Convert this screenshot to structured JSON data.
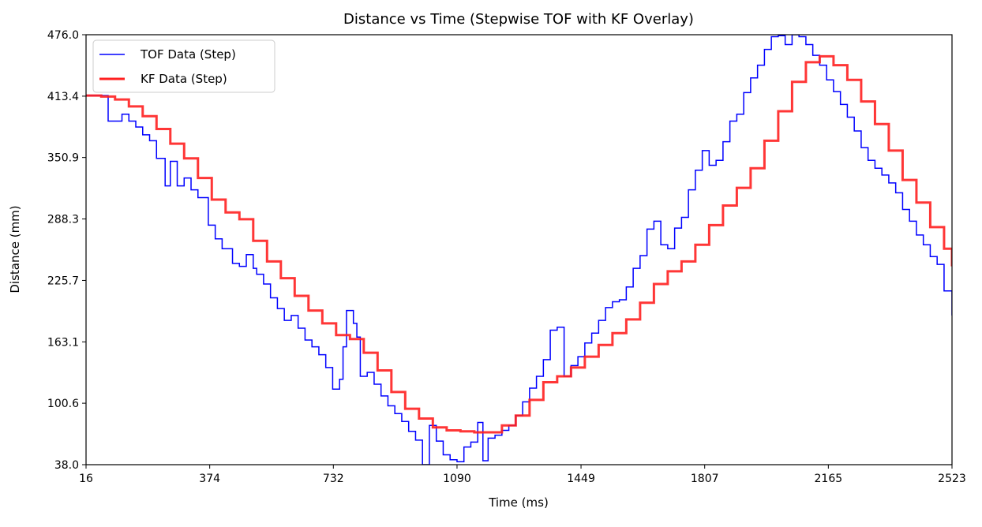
{
  "chart_data": {
    "type": "line",
    "step": true,
    "title": "Distance vs Time (Stepwise TOF with KF Overlay)",
    "xlabel": "Time (ms)",
    "ylabel": "Distance (mm)",
    "xlim": [
      16,
      2523
    ],
    "ylim": [
      38.0,
      476.0
    ],
    "xticks": [
      16,
      374,
      732,
      1090,
      1449,
      1807,
      2165,
      2523
    ],
    "xtick_labels": [
      "16",
      "374",
      "732",
      "1090",
      "1449",
      "1807",
      "2165",
      "2523"
    ],
    "yticks": [
      38.0,
      100.6,
      163.1,
      225.7,
      288.3,
      350.9,
      413.4,
      476.0
    ],
    "ytick_labels": [
      "38.0",
      "100.6",
      "163.1",
      "225.7",
      "288.3",
      "350.9",
      "413.4",
      "476.0"
    ],
    "legend": {
      "placement": "top-left"
    },
    "series": [
      {
        "name": "TOF Data (Step)",
        "color": "#0000ff",
        "points": [
          [
            16,
            414
          ],
          [
            50,
            414
          ],
          [
            80,
            388
          ],
          [
            120,
            395
          ],
          [
            140,
            388
          ],
          [
            160,
            382
          ],
          [
            180,
            374
          ],
          [
            200,
            368
          ],
          [
            220,
            350
          ],
          [
            245,
            322
          ],
          [
            260,
            347
          ],
          [
            280,
            322
          ],
          [
            300,
            330
          ],
          [
            320,
            318
          ],
          [
            340,
            310
          ],
          [
            370,
            282
          ],
          [
            390,
            268
          ],
          [
            410,
            258
          ],
          [
            440,
            243
          ],
          [
            460,
            240
          ],
          [
            480,
            252
          ],
          [
            500,
            238
          ],
          [
            510,
            232
          ],
          [
            530,
            222
          ],
          [
            550,
            208
          ],
          [
            570,
            197
          ],
          [
            590,
            185
          ],
          [
            610,
            190
          ],
          [
            630,
            177
          ],
          [
            650,
            165
          ],
          [
            670,
            158
          ],
          [
            690,
            150
          ],
          [
            710,
            137
          ],
          [
            730,
            115
          ],
          [
            750,
            125
          ],
          [
            760,
            158
          ],
          [
            770,
            195
          ],
          [
            790,
            182
          ],
          [
            800,
            168
          ],
          [
            810,
            128
          ],
          [
            830,
            132
          ],
          [
            850,
            120
          ],
          [
            870,
            108
          ],
          [
            890,
            98
          ],
          [
            910,
            90
          ],
          [
            930,
            82
          ],
          [
            950,
            72
          ],
          [
            970,
            63
          ],
          [
            990,
            38
          ],
          [
            1010,
            78
          ],
          [
            1030,
            62
          ],
          [
            1050,
            48
          ],
          [
            1070,
            43
          ],
          [
            1090,
            41
          ],
          [
            1110,
            56
          ],
          [
            1130,
            61
          ],
          [
            1150,
            81
          ],
          [
            1165,
            42
          ],
          [
            1180,
            65
          ],
          [
            1200,
            68
          ],
          [
            1220,
            73
          ],
          [
            1240,
            78
          ],
          [
            1260,
            88
          ],
          [
            1280,
            102
          ],
          [
            1300,
            116
          ],
          [
            1320,
            128
          ],
          [
            1340,
            145
          ],
          [
            1360,
            175
          ],
          [
            1380,
            178
          ],
          [
            1400,
            128
          ],
          [
            1420,
            139
          ],
          [
            1440,
            148
          ],
          [
            1460,
            162
          ],
          [
            1480,
            172
          ],
          [
            1500,
            185
          ],
          [
            1520,
            198
          ],
          [
            1540,
            204
          ],
          [
            1560,
            206
          ],
          [
            1580,
            219
          ],
          [
            1600,
            238
          ],
          [
            1620,
            251
          ],
          [
            1640,
            278
          ],
          [
            1660,
            286
          ],
          [
            1680,
            262
          ],
          [
            1700,
            258
          ],
          [
            1720,
            279
          ],
          [
            1740,
            290
          ],
          [
            1760,
            318
          ],
          [
            1780,
            338
          ],
          [
            1800,
            358
          ],
          [
            1820,
            343
          ],
          [
            1840,
            348
          ],
          [
            1860,
            367
          ],
          [
            1880,
            388
          ],
          [
            1900,
            395
          ],
          [
            1920,
            417
          ],
          [
            1940,
            432
          ],
          [
            1960,
            445
          ],
          [
            1980,
            461
          ],
          [
            2000,
            474
          ],
          [
            2020,
            475
          ],
          [
            2040,
            466
          ],
          [
            2060,
            476
          ],
          [
            2080,
            474
          ],
          [
            2100,
            466
          ],
          [
            2120,
            455
          ],
          [
            2140,
            445
          ],
          [
            2160,
            430
          ],
          [
            2180,
            418
          ],
          [
            2200,
            405
          ],
          [
            2220,
            392
          ],
          [
            2240,
            378
          ],
          [
            2260,
            361
          ],
          [
            2280,
            348
          ],
          [
            2300,
            340
          ],
          [
            2320,
            333
          ],
          [
            2340,
            325
          ],
          [
            2360,
            315
          ],
          [
            2380,
            298
          ],
          [
            2400,
            286
          ],
          [
            2420,
            272
          ],
          [
            2440,
            262
          ],
          [
            2460,
            250
          ],
          [
            2480,
            242
          ],
          [
            2500,
            215
          ],
          [
            2523,
            190
          ]
        ]
      },
      {
        "name": "KF Data (Step)",
        "color": "#ff2020",
        "points": [
          [
            16,
            414
          ],
          [
            60,
            413
          ],
          [
            100,
            410
          ],
          [
            140,
            403
          ],
          [
            180,
            393
          ],
          [
            220,
            380
          ],
          [
            260,
            365
          ],
          [
            300,
            350
          ],
          [
            340,
            330
          ],
          [
            380,
            308
          ],
          [
            420,
            295
          ],
          [
            460,
            288
          ],
          [
            500,
            266
          ],
          [
            540,
            245
          ],
          [
            580,
            228
          ],
          [
            620,
            210
          ],
          [
            660,
            195
          ],
          [
            700,
            182
          ],
          [
            740,
            170
          ],
          [
            780,
            166
          ],
          [
            820,
            152
          ],
          [
            860,
            134
          ],
          [
            900,
            112
          ],
          [
            940,
            95
          ],
          [
            980,
            85
          ],
          [
            1020,
            76
          ],
          [
            1060,
            73
          ],
          [
            1100,
            72
          ],
          [
            1140,
            71
          ],
          [
            1180,
            71
          ],
          [
            1220,
            78
          ],
          [
            1260,
            88
          ],
          [
            1300,
            104
          ],
          [
            1340,
            122
          ],
          [
            1380,
            128
          ],
          [
            1420,
            137
          ],
          [
            1460,
            148
          ],
          [
            1500,
            160
          ],
          [
            1540,
            172
          ],
          [
            1580,
            186
          ],
          [
            1620,
            203
          ],
          [
            1660,
            222
          ],
          [
            1700,
            235
          ],
          [
            1740,
            245
          ],
          [
            1780,
            262
          ],
          [
            1820,
            282
          ],
          [
            1860,
            302
          ],
          [
            1900,
            320
          ],
          [
            1940,
            340
          ],
          [
            1980,
            368
          ],
          [
            2020,
            398
          ],
          [
            2060,
            428
          ],
          [
            2100,
            448
          ],
          [
            2140,
            454
          ],
          [
            2180,
            445
          ],
          [
            2220,
            430
          ],
          [
            2260,
            408
          ],
          [
            2300,
            385
          ],
          [
            2340,
            358
          ],
          [
            2380,
            328
          ],
          [
            2420,
            305
          ],
          [
            2460,
            280
          ],
          [
            2500,
            258
          ],
          [
            2523,
            240
          ]
        ]
      }
    ]
  }
}
